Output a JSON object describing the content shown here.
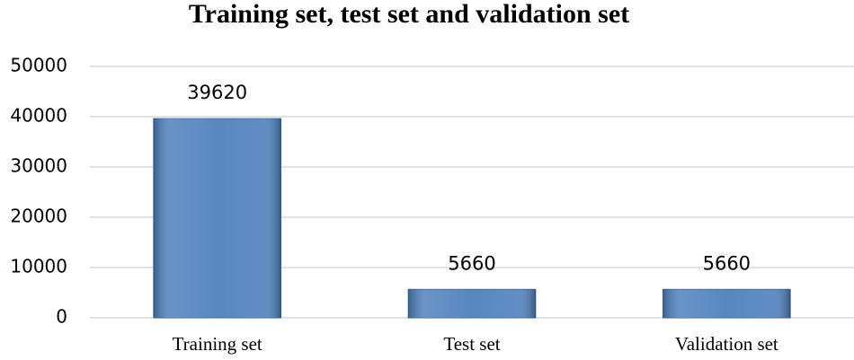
{
  "chart_data": {
    "type": "bar",
    "title": "Training set, test set and validation set",
    "categories": [
      "Training set",
      "Test set",
      "Validation set"
    ],
    "values": [
      39620,
      5660,
      5660
    ],
    "color": "#4f81bd",
    "ylim": [
      0,
      50000
    ],
    "yticks": [
      0,
      10000,
      20000,
      30000,
      40000,
      50000
    ],
    "grid": true
  }
}
